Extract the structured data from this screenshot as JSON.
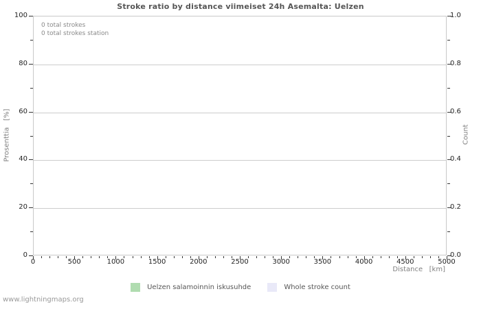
{
  "footer": "www.lightningmaps.org",
  "colors": {
    "background": "#ffffff",
    "title": "#555555",
    "grid": "#cccccc",
    "frame": "#c8c8c8",
    "tick": "#333333",
    "tick_label": "#222222",
    "axis_label": "#808080",
    "annotation": "#888888",
    "legend_text": "#555555",
    "footer": "#999999"
  },
  "chart_data": {
    "type": "line",
    "title": "Stroke ratio by distance viimeiset 24h Asemalta: Uelzen",
    "xlabel": "Distance   [km]",
    "ylabel_left": "Prosenttia   [%]",
    "ylabel_right": "Count",
    "xlim": [
      0,
      5000
    ],
    "x_ticks": [
      0,
      500,
      1000,
      1500,
      2000,
      2500,
      3000,
      3500,
      4000,
      4500,
      5000
    ],
    "x_major_step": 500,
    "x_minor_step": 100,
    "ylim_left": [
      0,
      100
    ],
    "y_ticks_left": [
      0,
      20,
      40,
      60,
      80,
      100
    ],
    "y_left_major_step": 20,
    "y_left_minor_step": 10,
    "ylim_right": [
      0,
      1
    ],
    "y_ticks_right": [
      "0.0",
      "0.2",
      "0.4",
      "0.6",
      "0.8",
      "1.0"
    ],
    "y_right_major_step": 0.2,
    "y_right_minor_step": 0.1,
    "y_right_decimals": 1,
    "grid": "horizontal-major-only",
    "legend_position": "bottom-center",
    "annotations": [
      "0 total strokes",
      "0 total strokes station"
    ],
    "series": [
      {
        "name": "Uelzen salamoinnin iskusuhde",
        "color": "#b0dcb0",
        "axis": "left",
        "x": [],
        "values": []
      },
      {
        "name": "Whole stroke count",
        "color": "#e9e9f8",
        "axis": "right",
        "x": [],
        "values": []
      }
    ]
  }
}
